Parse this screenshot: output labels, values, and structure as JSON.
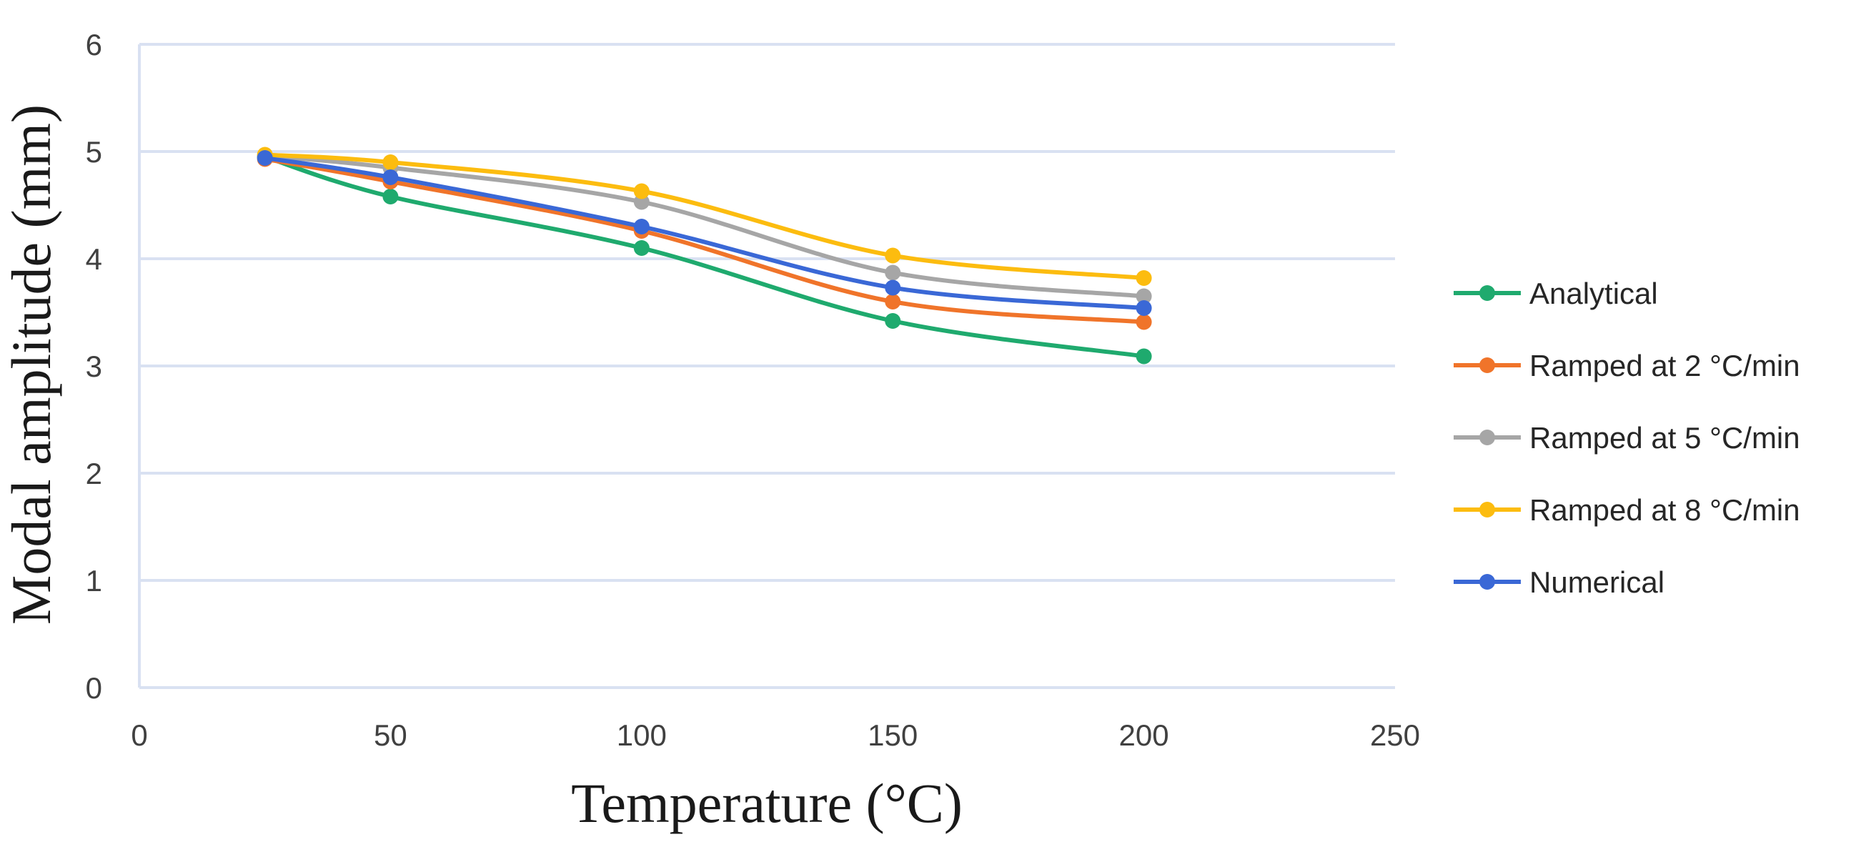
{
  "chart_data": {
    "type": "line",
    "title": "",
    "xlabel": "Temperature (°C)",
    "ylabel": "Modal amplitude (mm)",
    "xlim": [
      0,
      250
    ],
    "ylim": [
      0,
      6
    ],
    "xticks": [
      0,
      50,
      100,
      150,
      200,
      250
    ],
    "yticks": [
      0,
      1,
      2,
      3,
      4,
      5,
      6
    ],
    "grid": "horizontal",
    "legend_position": "right",
    "x": [
      25,
      50,
      100,
      150,
      200
    ],
    "series": [
      {
        "name": "Analytical",
        "color": "#1faa6e",
        "values": [
          4.95,
          4.58,
          4.1,
          3.42,
          3.09
        ]
      },
      {
        "name": "Ramped at 2 °C/min",
        "color": "#f0742a",
        "values": [
          4.93,
          4.72,
          4.26,
          3.6,
          3.41
        ]
      },
      {
        "name": "Ramped at 5 °C/min",
        "color": "#a6a6a6",
        "values": [
          4.96,
          4.85,
          4.53,
          3.87,
          3.65
        ]
      },
      {
        "name": "Ramped at 8 °C/min",
        "color": "#fcbc0f",
        "values": [
          4.97,
          4.9,
          4.63,
          4.03,
          3.82
        ]
      },
      {
        "name": "Numerical",
        "color": "#3a68d6",
        "values": [
          4.94,
          4.76,
          4.3,
          3.73,
          3.54
        ]
      }
    ]
  }
}
